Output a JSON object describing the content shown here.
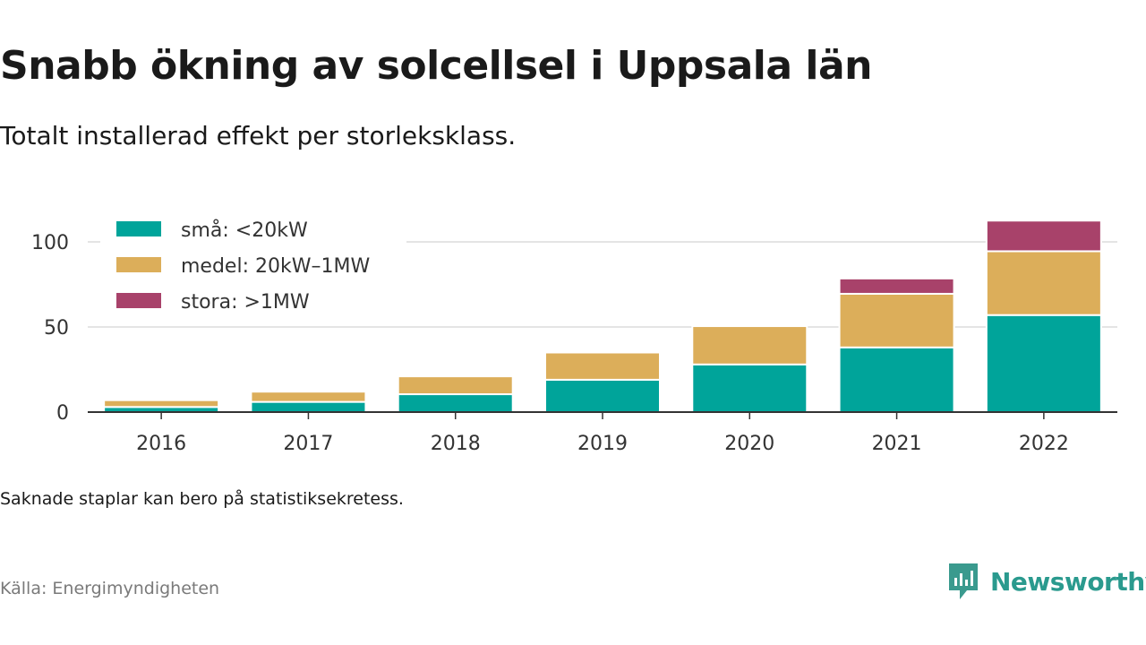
{
  "title": "Snabb ökning av solcellsel i Uppsala län",
  "subtitle": "Totalt installerad effekt per storleksklass.",
  "footnote": "Saknade staplar kan bero på statistiksekretess.",
  "source": "Källa: Energimyndigheten",
  "brand": "Newsworthy",
  "chart_data": {
    "type": "bar",
    "stacked": true,
    "categories": [
      "2016",
      "2017",
      "2018",
      "2019",
      "2020",
      "2021",
      "2022"
    ],
    "series": [
      {
        "name": "små: <20kW",
        "color": "#00a49a",
        "values": [
          3,
          6,
          10.5,
          19,
          28,
          38,
          57
        ]
      },
      {
        "name": "medel: 20kW–1MW",
        "color": "#dcae5a",
        "values": [
          4,
          6,
          10.5,
          16,
          22.5,
          31.5,
          37.5
        ]
      },
      {
        "name": "stora: >1MW",
        "color": "#a8426a",
        "values": [
          0,
          0,
          0,
          0,
          0,
          9,
          18
        ]
      }
    ],
    "ylim": [
      0,
      115
    ],
    "yticks": [
      0,
      50,
      100
    ],
    "legend_position": "top-left",
    "grid": true
  }
}
